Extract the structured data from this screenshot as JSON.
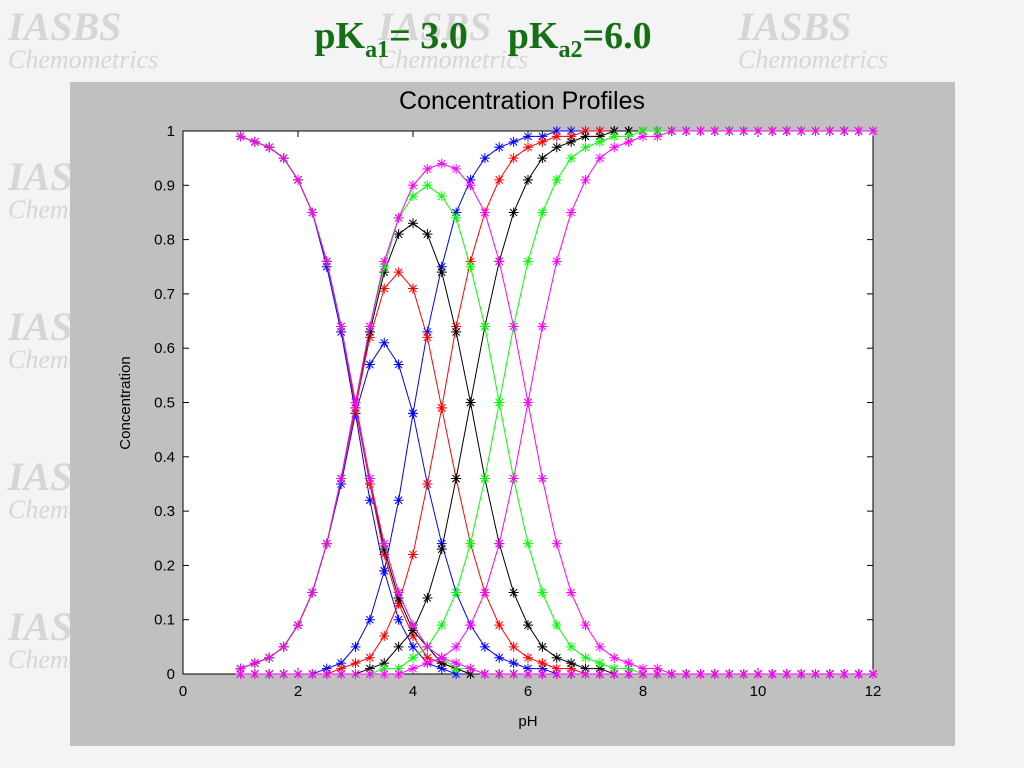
{
  "slide_title": [
    {
      "base": "pK",
      "sub": "a1",
      "after": "= 3.0"
    },
    {
      "base": "pK",
      "sub": "a2",
      "after": "=6.0"
    }
  ],
  "watermark": [
    "IASBS",
    "Chemometrics"
  ],
  "chart_data": {
    "type": "line",
    "title": "Concentration Profiles",
    "xlabel": "pH",
    "ylabel": "Concentration",
    "marker": "asterisk",
    "grid": false,
    "xlim": [
      0,
      12
    ],
    "xticks": [
      0,
      2,
      4,
      6,
      8,
      10,
      12
    ],
    "ylim": [
      0,
      1
    ],
    "yticks": [
      0,
      0.1,
      0.2,
      0.3,
      0.4,
      0.5,
      0.6,
      0.7,
      0.8,
      0.9,
      1
    ],
    "x": [
      1,
      1.25,
      1.5,
      1.75,
      2,
      2.25,
      2.5,
      2.75,
      3,
      3.25,
      3.5,
      3.75,
      4,
      4.25,
      4.5,
      4.75,
      5,
      5.25,
      5.5,
      5.75,
      6,
      6.25,
      6.5,
      6.75,
      7,
      7.25,
      7.5,
      7.75,
      8,
      8.25,
      8.5,
      8.75,
      9,
      9.25,
      9.5,
      9.75,
      10,
      10.25,
      10.5,
      10.75,
      11,
      11.25,
      11.5,
      11.75,
      12
    ],
    "series": [
      {
        "color": "#0000ff",
        "values": [
          0.99,
          0.98,
          0.97,
          0.95,
          0.91,
          0.85,
          0.75,
          0.63,
          0.48,
          0.32,
          0.19,
          0.1,
          0.05,
          0.02,
          0.01,
          0,
          0,
          0,
          0,
          0,
          0,
          0,
          0,
          0,
          0,
          0,
          0,
          0,
          0,
          0,
          0,
          0,
          0,
          0,
          0,
          0,
          0,
          0,
          0,
          0,
          0,
          0,
          0,
          0,
          0
        ]
      },
      {
        "color": "#0000ff",
        "values": [
          0.01,
          0.02,
          0.03,
          0.05,
          0.09,
          0.15,
          0.24,
          0.35,
          0.48,
          0.57,
          0.61,
          0.57,
          0.48,
          0.35,
          0.24,
          0.15,
          0.09,
          0.05,
          0.03,
          0.02,
          0.01,
          0.01,
          0,
          0,
          0,
          0,
          0,
          0,
          0,
          0,
          0,
          0,
          0,
          0,
          0,
          0,
          0,
          0,
          0,
          0,
          0,
          0,
          0,
          0,
          0
        ]
      },
      {
        "color": "#0000ff",
        "values": [
          0,
          0,
          0,
          0,
          0,
          0,
          0.01,
          0.02,
          0.05,
          0.1,
          0.19,
          0.32,
          0.48,
          0.63,
          0.75,
          0.85,
          0.91,
          0.95,
          0.97,
          0.98,
          0.99,
          0.99,
          1,
          1,
          1,
          1,
          1,
          1,
          1,
          1,
          1,
          1,
          1,
          1,
          1,
          1,
          1,
          1,
          1,
          1,
          1,
          1,
          1,
          1,
          1
        ]
      },
      {
        "color": "#ff0000",
        "values": [
          0.99,
          0.98,
          0.97,
          0.95,
          0.91,
          0.85,
          0.76,
          0.64,
          0.49,
          0.35,
          0.22,
          0.13,
          0.07,
          0.03,
          0.02,
          0.01,
          0,
          0,
          0,
          0,
          0,
          0,
          0,
          0,
          0,
          0,
          0,
          0,
          0,
          0,
          0,
          0,
          0,
          0,
          0,
          0,
          0,
          0,
          0,
          0,
          0,
          0,
          0,
          0,
          0
        ]
      },
      {
        "color": "#ff0000",
        "values": [
          0.01,
          0.02,
          0.03,
          0.05,
          0.09,
          0.15,
          0.24,
          0.36,
          0.49,
          0.62,
          0.71,
          0.74,
          0.71,
          0.62,
          0.49,
          0.36,
          0.24,
          0.15,
          0.09,
          0.05,
          0.03,
          0.02,
          0.01,
          0.01,
          0,
          0,
          0,
          0,
          0,
          0,
          0,
          0,
          0,
          0,
          0,
          0,
          0,
          0,
          0,
          0,
          0,
          0,
          0,
          0,
          0
        ]
      },
      {
        "color": "#ff0000",
        "values": [
          0,
          0,
          0,
          0,
          0,
          0,
          0,
          0.01,
          0.02,
          0.03,
          0.07,
          0.13,
          0.22,
          0.35,
          0.49,
          0.64,
          0.76,
          0.85,
          0.91,
          0.95,
          0.97,
          0.98,
          0.99,
          0.99,
          1,
          1,
          1,
          1,
          1,
          1,
          1,
          1,
          1,
          1,
          1,
          1,
          1,
          1,
          1,
          1,
          1,
          1,
          1,
          1,
          1
        ]
      },
      {
        "color": "#000000",
        "values": [
          0.99,
          0.98,
          0.97,
          0.95,
          0.91,
          0.85,
          0.76,
          0.64,
          0.5,
          0.36,
          0.23,
          0.14,
          0.08,
          0.05,
          0.02,
          0.01,
          0,
          0,
          0,
          0,
          0,
          0,
          0,
          0,
          0,
          0,
          0,
          0,
          0,
          0,
          0,
          0,
          0,
          0,
          0,
          0,
          0,
          0,
          0,
          0,
          0,
          0,
          0,
          0,
          0
        ]
      },
      {
        "color": "#000000",
        "values": [
          0.01,
          0.02,
          0.03,
          0.05,
          0.09,
          0.15,
          0.24,
          0.36,
          0.5,
          0.63,
          0.74,
          0.81,
          0.83,
          0.81,
          0.74,
          0.63,
          0.5,
          0.36,
          0.24,
          0.15,
          0.09,
          0.05,
          0.03,
          0.02,
          0.01,
          0.01,
          0,
          0,
          0,
          0,
          0,
          0,
          0,
          0,
          0,
          0,
          0,
          0,
          0,
          0,
          0,
          0,
          0,
          0,
          0
        ]
      },
      {
        "color": "#000000",
        "values": [
          0,
          0,
          0,
          0,
          0,
          0,
          0,
          0,
          0,
          0.01,
          0.02,
          0.05,
          0.08,
          0.14,
          0.23,
          0.36,
          0.5,
          0.64,
          0.76,
          0.85,
          0.91,
          0.95,
          0.97,
          0.98,
          0.99,
          0.99,
          1,
          1,
          1,
          1,
          1,
          1,
          1,
          1,
          1,
          1,
          1,
          1,
          1,
          1,
          1,
          1,
          1,
          1,
          1
        ]
      },
      {
        "color": "#00ff00",
        "values": [
          0.99,
          0.98,
          0.97,
          0.95,
          0.91,
          0.85,
          0.76,
          0.64,
          0.5,
          0.36,
          0.24,
          0.15,
          0.09,
          0.05,
          0.03,
          0.01,
          0.01,
          0,
          0,
          0,
          0,
          0,
          0,
          0,
          0,
          0,
          0,
          0,
          0,
          0,
          0,
          0,
          0,
          0,
          0,
          0,
          0,
          0,
          0,
          0,
          0,
          0,
          0,
          0,
          0
        ]
      },
      {
        "color": "#00ff00",
        "values": [
          0.01,
          0.02,
          0.03,
          0.05,
          0.09,
          0.15,
          0.24,
          0.36,
          0.5,
          0.64,
          0.75,
          0.84,
          0.88,
          0.9,
          0.88,
          0.84,
          0.75,
          0.64,
          0.5,
          0.36,
          0.24,
          0.15,
          0.09,
          0.05,
          0.03,
          0.02,
          0.01,
          0.01,
          0,
          0,
          0,
          0,
          0,
          0,
          0,
          0,
          0,
          0,
          0,
          0,
          0,
          0,
          0,
          0,
          0
        ]
      },
      {
        "color": "#00ff00",
        "values": [
          0,
          0,
          0,
          0,
          0,
          0,
          0,
          0,
          0,
          0,
          0.01,
          0.01,
          0.03,
          0.05,
          0.09,
          0.15,
          0.24,
          0.36,
          0.5,
          0.64,
          0.76,
          0.85,
          0.91,
          0.95,
          0.97,
          0.98,
          0.99,
          0.99,
          1,
          1,
          1,
          1,
          1,
          1,
          1,
          1,
          1,
          1,
          1,
          1,
          1,
          1,
          1,
          1,
          1
        ]
      },
      {
        "color": "#ff00ff",
        "values": [
          0.99,
          0.98,
          0.97,
          0.95,
          0.91,
          0.85,
          0.76,
          0.64,
          0.5,
          0.36,
          0.24,
          0.15,
          0.09,
          0.05,
          0.03,
          0.02,
          0.01,
          0,
          0,
          0,
          0,
          0,
          0,
          0,
          0,
          0,
          0,
          0,
          0,
          0,
          0,
          0,
          0,
          0,
          0,
          0,
          0,
          0,
          0,
          0,
          0,
          0,
          0,
          0,
          0
        ]
      },
      {
        "color": "#ff00ff",
        "values": [
          0.01,
          0.02,
          0.03,
          0.05,
          0.09,
          0.15,
          0.24,
          0.36,
          0.5,
          0.64,
          0.76,
          0.84,
          0.9,
          0.93,
          0.94,
          0.93,
          0.9,
          0.85,
          0.76,
          0.64,
          0.5,
          0.36,
          0.24,
          0.15,
          0.09,
          0.05,
          0.03,
          0.02,
          0.01,
          0.01,
          0,
          0,
          0,
          0,
          0,
          0,
          0,
          0,
          0,
          0,
          0,
          0,
          0,
          0,
          0
        ]
      },
      {
        "color": "#ff00ff",
        "values": [
          0,
          0,
          0,
          0,
          0,
          0,
          0,
          0,
          0,
          0,
          0,
          0,
          0.01,
          0.02,
          0.03,
          0.05,
          0.09,
          0.15,
          0.24,
          0.36,
          0.5,
          0.64,
          0.76,
          0.85,
          0.91,
          0.95,
          0.97,
          0.98,
          0.99,
          0.99,
          1,
          1,
          1,
          1,
          1,
          1,
          1,
          1,
          1,
          1,
          1,
          1,
          1,
          1,
          1
        ]
      }
    ]
  }
}
